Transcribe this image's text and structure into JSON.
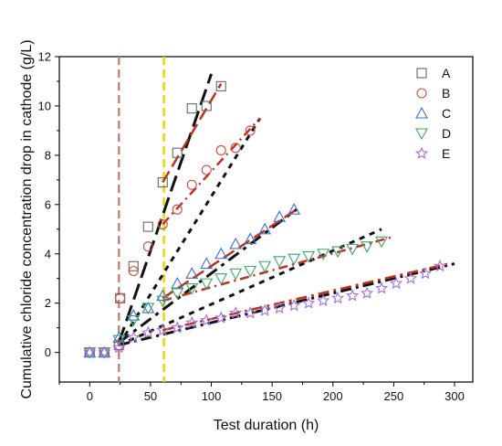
{
  "chart_data": {
    "type": "scatter",
    "title": "",
    "xlabel": "Test duration (h)",
    "ylabel": "Cumulative chloride concentration drop in cathode (g/L)",
    "xlim": [
      -25,
      315
    ],
    "ylim": [
      -1.2,
      12
    ],
    "x_ticks": [
      0,
      50,
      100,
      150,
      200,
      250,
      300
    ],
    "y_ticks": [
      0,
      2,
      4,
      6,
      8,
      10,
      12
    ],
    "grid": false,
    "legend_position": "top-right",
    "vertical_lines": [
      {
        "x": 24,
        "color": "#c8867a",
        "style": "dashed"
      },
      {
        "x": 61,
        "color": "#e8d800",
        "style": "dashed"
      }
    ],
    "series": [
      {
        "name": "A",
        "marker": "square",
        "color": "#666666",
        "points": [
          [
            0,
            0
          ],
          [
            12,
            0
          ],
          [
            24,
            0.3
          ],
          [
            25,
            2.2
          ],
          [
            36,
            3.5
          ],
          [
            48,
            5.1
          ],
          [
            60,
            6.9
          ],
          [
            72,
            8.1
          ],
          [
            84,
            9.9
          ],
          [
            96,
            10.0
          ],
          [
            108,
            10.8
          ]
        ]
      },
      {
        "name": "B",
        "marker": "circle",
        "color": "#d24a3a",
        "points": [
          [
            0,
            0
          ],
          [
            12,
            0
          ],
          [
            24,
            0.3
          ],
          [
            25,
            2.2
          ],
          [
            36,
            3.3
          ],
          [
            48,
            4.3
          ],
          [
            60,
            5.2
          ],
          [
            72,
            5.8
          ],
          [
            84,
            6.8
          ],
          [
            96,
            7.4
          ],
          [
            108,
            8.2
          ],
          [
            120,
            8.3
          ],
          [
            132,
            9.0
          ]
        ]
      },
      {
        "name": "C",
        "marker": "triangle-up",
        "color": "#3a6fd8",
        "points": [
          [
            0,
            0
          ],
          [
            12,
            0
          ],
          [
            24,
            0.6
          ],
          [
            36,
            1.5
          ],
          [
            48,
            1.8
          ],
          [
            60,
            2.3
          ],
          [
            72,
            2.8
          ],
          [
            84,
            3.2
          ],
          [
            96,
            3.6
          ],
          [
            108,
            4.0
          ],
          [
            120,
            4.4
          ],
          [
            132,
            4.6
          ],
          [
            144,
            5.0
          ],
          [
            156,
            5.5
          ],
          [
            168,
            5.8
          ]
        ]
      },
      {
        "name": "D",
        "marker": "triangle-down",
        "color": "#3aa868",
        "points": [
          [
            0,
            0
          ],
          [
            12,
            0
          ],
          [
            24,
            0.5
          ],
          [
            36,
            1.3
          ],
          [
            48,
            1.8
          ],
          [
            60,
            2.1
          ],
          [
            72,
            2.4
          ],
          [
            84,
            2.6
          ],
          [
            96,
            2.8
          ],
          [
            108,
            3.0
          ],
          [
            120,
            3.2
          ],
          [
            132,
            3.3
          ],
          [
            144,
            3.5
          ],
          [
            156,
            3.7
          ],
          [
            168,
            3.8
          ],
          [
            180,
            3.9
          ],
          [
            192,
            4.0
          ],
          [
            204,
            4.1
          ],
          [
            216,
            4.2
          ],
          [
            228,
            4.3
          ],
          [
            240,
            4.5
          ]
        ]
      },
      {
        "name": "E",
        "marker": "star",
        "color": "#a070e0",
        "points": [
          [
            0,
            0
          ],
          [
            12,
            0
          ],
          [
            24,
            0.2
          ],
          [
            36,
            0.6
          ],
          [
            48,
            0.8
          ],
          [
            60,
            0.9
          ],
          [
            72,
            1.0
          ],
          [
            84,
            1.2
          ],
          [
            96,
            1.3
          ],
          [
            108,
            1.4
          ],
          [
            120,
            1.6
          ],
          [
            132,
            1.6
          ],
          [
            144,
            1.7
          ],
          [
            156,
            1.8
          ],
          [
            168,
            1.9
          ],
          [
            180,
            2.0
          ],
          [
            192,
            2.1
          ],
          [
            204,
            2.2
          ],
          [
            216,
            2.3
          ],
          [
            228,
            2.4
          ],
          [
            240,
            2.6
          ],
          [
            252,
            2.8
          ],
          [
            264,
            3.0
          ],
          [
            276,
            3.2
          ],
          [
            288,
            3.5
          ]
        ]
      }
    ],
    "fit_lines": [
      {
        "from": [
          24,
          0.4
        ],
        "to": [
          100,
          11.3
        ],
        "color": "#111111",
        "dash": "18 7",
        "width": 3
      },
      {
        "from": [
          60,
          6.9
        ],
        "to": [
          108,
          10.9
        ],
        "color": "#c23020",
        "dash": "14 6",
        "width": 2.5
      },
      {
        "from": [
          24,
          0.3
        ],
        "to": [
          140,
          9.5
        ],
        "color": "#111111",
        "dash": "6 6",
        "width": 3
      },
      {
        "from": [
          60,
          5.2
        ],
        "to": [
          140,
          9.5
        ],
        "color": "#c23020",
        "dash": "10 5 2 5",
        "width": 2.5
      },
      {
        "from": [
          24,
          0.4
        ],
        "to": [
          170,
          5.8
        ],
        "color": "#111111",
        "dash": "14 6 4 6",
        "width": 3
      },
      {
        "from": [
          60,
          2.2
        ],
        "to": [
          170,
          5.8
        ],
        "color": "#c23020",
        "dash": "14 6",
        "width": 2.5
      },
      {
        "from": [
          24,
          0.3
        ],
        "to": [
          240,
          5.0
        ],
        "color": "#111111",
        "dash": "6 6",
        "width": 3
      },
      {
        "from": [
          60,
          2.1
        ],
        "to": [
          250,
          4.7
        ],
        "color": "#c23020",
        "dash": "10 5 2 5",
        "width": 2.5
      },
      {
        "from": [
          24,
          0.3
        ],
        "to": [
          300,
          3.6
        ],
        "color": "#111111",
        "dash": "12 5 3 5",
        "width": 3
      },
      {
        "from": [
          60,
          0.9
        ],
        "to": [
          295,
          3.6
        ],
        "color": "#c23020",
        "dash": "12 5 3 5",
        "width": 2.5
      }
    ]
  }
}
